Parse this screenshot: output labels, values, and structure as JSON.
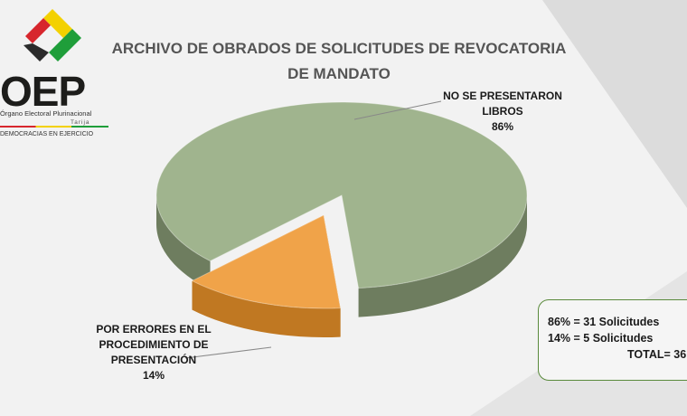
{
  "logo": {
    "brand": "OEP",
    "org": "Órgano Electoral Plurinacional",
    "city": "Tarija",
    "motto": "DEMOCRACIAS EN EJERCICIO"
  },
  "colors": {
    "slice_no_libros": "#a0b48e",
    "slice_no_libros_side": "#6e7d5f",
    "slice_errores": "#f0a349",
    "slice_errores_side": "#c07822",
    "summary_border": "#5a8a3c"
  },
  "chart_data": {
    "type": "pie",
    "style": "3d-exploded",
    "title": "ARCHIVO DE OBRADOS DE SOLICITUDES DE REVOCATORIA DE MANDATO",
    "slices": [
      {
        "label": "NO SE PRESENTARON LIBROS",
        "value": 86,
        "value_label": "86%"
      },
      {
        "label": "POR ERRORES EN EL PROCEDIMIENTO DE PRESENTACIÓN",
        "value": 14,
        "value_label": "14%"
      }
    ],
    "label_lines": {
      "a1": "NO SE PRESENTARON",
      "a2": "LIBROS",
      "b1": "POR ERRORES EN EL",
      "b2": "PROCEDIMIENTO DE",
      "b3": "PRESENTACIÓN"
    }
  },
  "summary": {
    "line1": "86% = 31 Solicitudes",
    "line2": "14% = 5 Solicitudes",
    "total": "TOTAL= 36"
  }
}
